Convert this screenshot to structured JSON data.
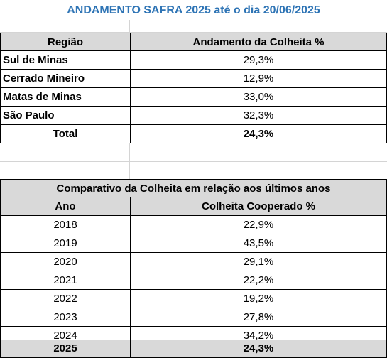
{
  "title": "ANDAMENTO SAFRA 2025 até o dia 20/06/2025",
  "regions_table": {
    "headers": [
      "Região",
      "Andamento da Colheita %"
    ],
    "rows": [
      {
        "region": "Sul de Minas",
        "value": "29,3%"
      },
      {
        "region": "Cerrado Mineiro",
        "value": "12,9%"
      },
      {
        "region": "Matas de Minas",
        "value": "33,0%"
      },
      {
        "region": "São Paulo",
        "value": "32,3%"
      }
    ],
    "total": {
      "label": "Total",
      "value": "24,3%"
    }
  },
  "comparison_table": {
    "title": "Comparativo da Colheita em relação aos últimos anos",
    "headers": [
      "Ano",
      "Colheita Cooperado %"
    ],
    "rows": [
      {
        "year": "2018",
        "value": "22,9%"
      },
      {
        "year": "2019",
        "value": "43,5%"
      },
      {
        "year": "2020",
        "value": "29,1%"
      },
      {
        "year": "2021",
        "value": "22,2%"
      },
      {
        "year": "2022",
        "value": "19,2%"
      },
      {
        "year": "2023",
        "value": "27,8%"
      },
      {
        "year": "2024",
        "value": "34,2%"
      }
    ],
    "current": {
      "year": "2025",
      "value": "24,3%"
    }
  }
}
